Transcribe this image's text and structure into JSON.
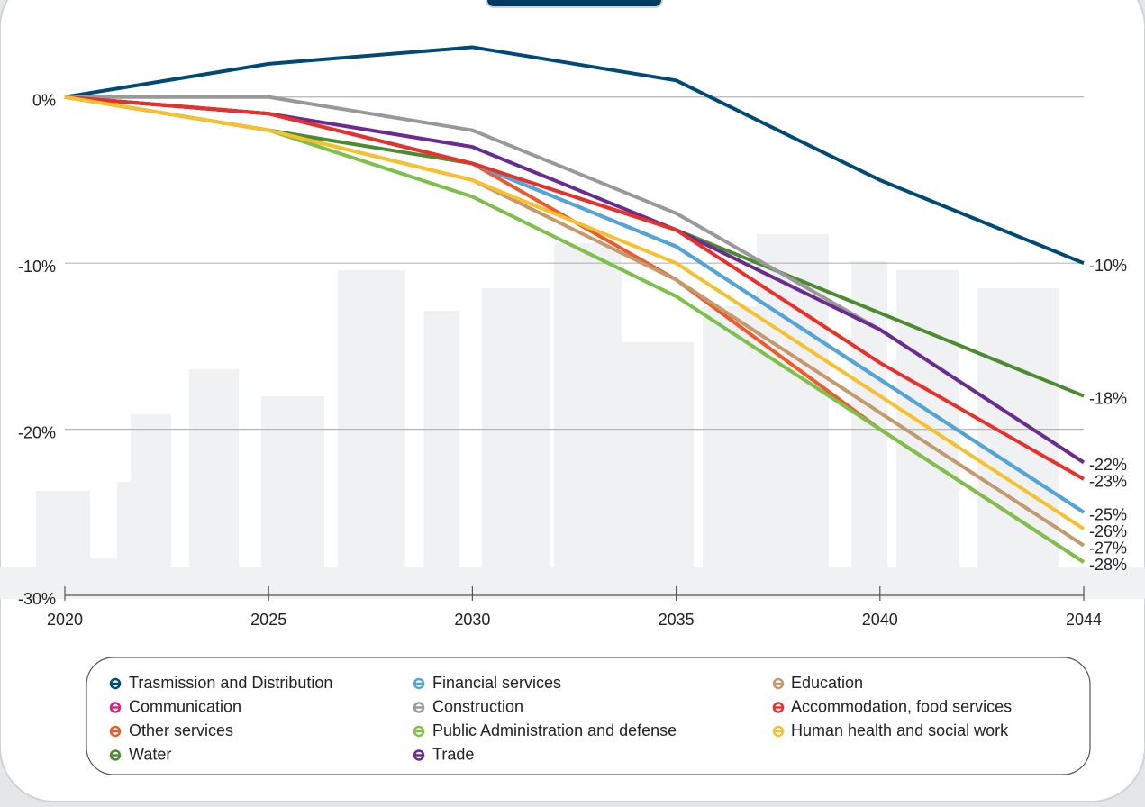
{
  "chart_data": {
    "type": "line",
    "categories": [
      "2020",
      "2025",
      "2030",
      "2035",
      "2040",
      "2044"
    ],
    "ylim": [
      -30,
      4
    ],
    "yticks": [
      {
        "value": -30,
        "label": "-30%"
      },
      {
        "value": -20,
        "label": "-20%"
      },
      {
        "value": -10,
        "label": "-10%"
      },
      {
        "value": 0,
        "label": "0%"
      }
    ],
    "grid": true,
    "series": [
      {
        "name": "Trasmission and Distribution",
        "color": "#004a77",
        "values": [
          0,
          2,
          3,
          1,
          -5,
          -10
        ],
        "value_labels": [
          null,
          null,
          null,
          null,
          null,
          "-10%"
        ]
      },
      {
        "name": "Communication",
        "color": "#d6257a",
        "values": [
          0,
          -1,
          -4,
          -9,
          -17,
          -25
        ],
        "value_labels": [
          null,
          null,
          null,
          null,
          null,
          "-25%"
        ]
      },
      {
        "name": "Other services",
        "color": "#ee5a2b",
        "values": [
          0,
          -1,
          -4,
          -11,
          -20,
          -28
        ]
      },
      {
        "name": "Water",
        "color": "#4a8c2f",
        "values": [
          0,
          -2,
          -4,
          -8,
          -13,
          -18
        ],
        "value_labels": [
          null,
          null,
          null,
          null,
          null,
          "-18%"
        ]
      },
      {
        "name": "Financial services",
        "color": "#4da8da",
        "values": [
          0,
          -1,
          -4,
          -9,
          -17,
          -25
        ]
      },
      {
        "name": "Construction",
        "color": "#999999",
        "values": [
          0,
          0,
          -2,
          -7,
          -14,
          -22
        ],
        "value_labels": [
          null,
          null,
          null,
          null,
          null,
          "-22%"
        ]
      },
      {
        "name": "Public Administration and defense",
        "color": "#7dc04a",
        "values": [
          0,
          -2,
          -6,
          -12,
          -20,
          -28
        ],
        "value_labels": [
          null,
          null,
          null,
          null,
          null,
          "-28%"
        ]
      },
      {
        "name": "Trade",
        "color": "#6a2c91",
        "values": [
          0,
          -1,
          -3,
          -8,
          -14,
          -22
        ]
      },
      {
        "name": "Education",
        "color": "#c49a6c",
        "values": [
          0,
          -2,
          -5,
          -11,
          -19,
          -27
        ],
        "value_labels": [
          null,
          null,
          null,
          null,
          null,
          "-27%"
        ]
      },
      {
        "name": "Accommodation, food services",
        "color": "#e8312a",
        "values": [
          0,
          -1,
          -4,
          -8,
          -16,
          -23
        ],
        "value_labels": [
          null,
          null,
          null,
          null,
          null,
          "-23%"
        ]
      },
      {
        "name": "Human health and social work",
        "color": "#f6c12c",
        "values": [
          0,
          -2,
          -5,
          -10,
          -18,
          -26
        ],
        "value_labels": [
          null,
          null,
          null,
          null,
          null,
          "-26%"
        ]
      }
    ]
  }
}
